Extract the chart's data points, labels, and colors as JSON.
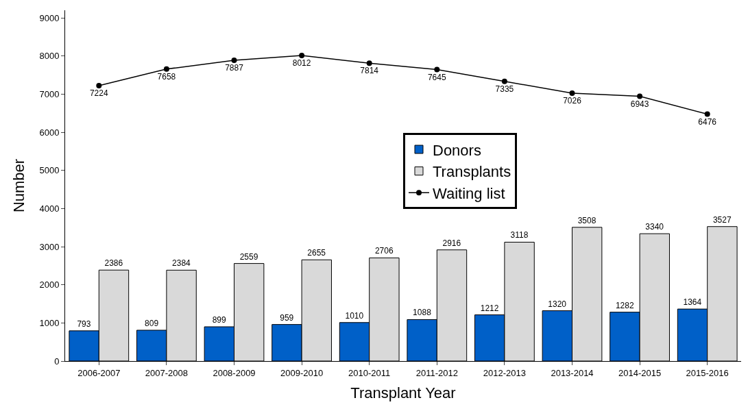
{
  "chart_data": {
    "type": "bar",
    "xlabel": "Transplant Year",
    "ylabel": "Number",
    "categories": [
      "2006-2007",
      "2007-2008",
      "2008-2009",
      "2009-2010",
      "2010-2011",
      "2011-2012",
      "2012-2013",
      "2013-2014",
      "2014-2015",
      "2015-2016"
    ],
    "series": [
      {
        "name": "Donors",
        "color": "#0060c8",
        "values": [
          793,
          809,
          899,
          959,
          1010,
          1088,
          1212,
          1320,
          1282,
          1364
        ]
      },
      {
        "name": "Transplants",
        "color": "#d9d9d9",
        "values": [
          2386,
          2384,
          2559,
          2655,
          2706,
          2916,
          3118,
          3508,
          3340,
          3527
        ]
      },
      {
        "name": "Waiting list",
        "type": "line",
        "color": "#000000",
        "marker": "circle",
        "values": [
          7224,
          7658,
          7887,
          8012,
          7814,
          7645,
          7335,
          7026,
          6943,
          6476
        ]
      }
    ],
    "ylim": [
      0,
      9200
    ],
    "yticks": [
      0,
      1000,
      2000,
      3000,
      4000,
      5000,
      6000,
      7000,
      8000,
      9000
    ],
    "legend": "top right",
    "data_labels": true
  }
}
